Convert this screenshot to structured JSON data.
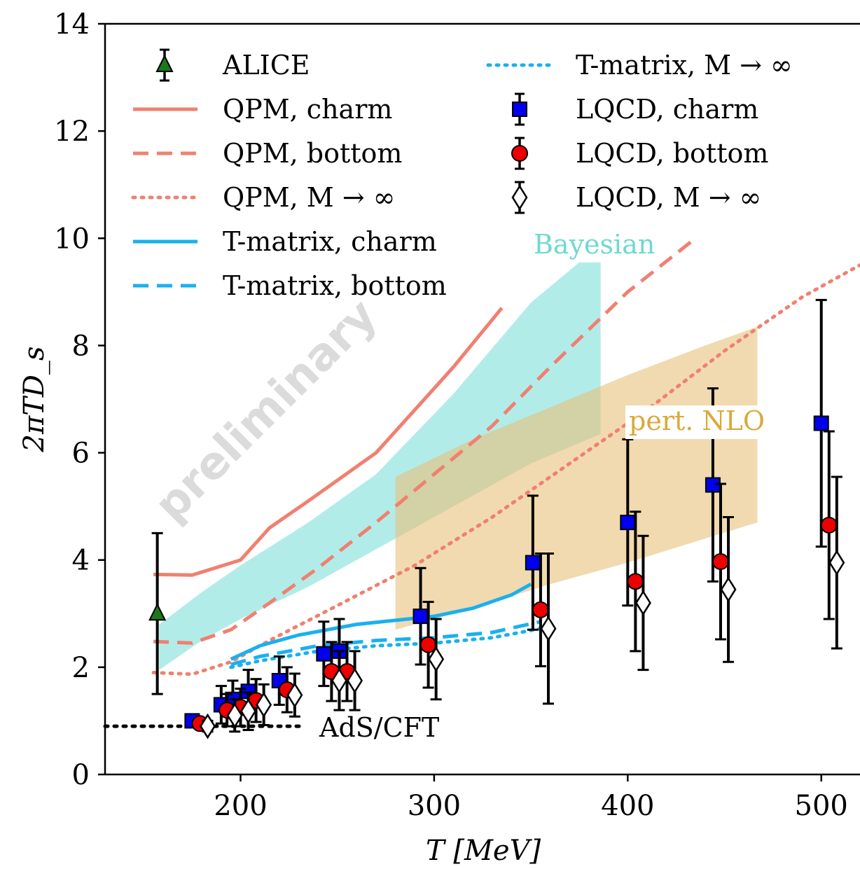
{
  "chart_data": {
    "type": "scatter",
    "xlabel": "T [MeV]",
    "ylabel": "2πTD_s",
    "xlim": [
      130,
      520
    ],
    "ylim": [
      0,
      14
    ],
    "x_ticks": [
      200,
      300,
      400,
      500
    ],
    "y_ticks": [
      0,
      2,
      4,
      6,
      8,
      10,
      12,
      14
    ],
    "legend_position": "top",
    "watermark": "preliminary",
    "annotations": {
      "bayesian": "Bayesian",
      "nlo": "pert. NLO",
      "ads": "AdS/CFT"
    },
    "colors": {
      "qpm": "#f08070",
      "tmatrix": "#1ab0ef",
      "bayesian": "#7fe0d8",
      "nlo": "#e8c27a",
      "alice": "#1a7a1a",
      "lqcd_charm": "#0000ee",
      "lqcd_bottom": "#ee0000"
    },
    "legend": [
      {
        "label": "ALICE",
        "style": "triangle"
      },
      {
        "label": "QPM, charm",
        "style": "qpm-solid"
      },
      {
        "label": "QPM, bottom",
        "style": "qpm-dashed"
      },
      {
        "label": "QPM,  M → ∞",
        "style": "qpm-dotted"
      },
      {
        "label": "T-matrix, charm",
        "style": "tm-solid"
      },
      {
        "label": "T-matrix, bottom",
        "style": "tm-dashed"
      },
      {
        "label": "T-matrix,  M → ∞",
        "style": "tm-dotted"
      },
      {
        "label": "LQCD, charm",
        "style": "square"
      },
      {
        "label": "LQCD, bottom",
        "style": "circle"
      },
      {
        "label": "LQCD,  M → ∞",
        "style": "diamond"
      }
    ],
    "bands": [
      {
        "name": "Bayesian",
        "upper": [
          [
            158,
            2.8
          ],
          [
            180,
            3.4
          ],
          [
            200,
            3.9
          ],
          [
            235,
            4.7
          ],
          [
            270,
            5.6
          ],
          [
            310,
            7.1
          ],
          [
            350,
            8.8
          ],
          [
            375,
            9.55
          ],
          [
            386,
            9.55
          ]
        ],
        "lower": [
          [
            158,
            1.95
          ],
          [
            180,
            2.5
          ],
          [
            200,
            2.9
          ],
          [
            235,
            3.5
          ],
          [
            270,
            4.2
          ],
          [
            310,
            5.0
          ],
          [
            350,
            5.8
          ],
          [
            386,
            6.35
          ]
        ]
      },
      {
        "name": "pert. NLO",
        "upper": [
          [
            280,
            5.55
          ],
          [
            320,
            6.25
          ],
          [
            360,
            6.85
          ],
          [
            400,
            7.45
          ],
          [
            440,
            8.0
          ],
          [
            467,
            8.35
          ]
        ],
        "lower": [
          [
            280,
            2.7
          ],
          [
            320,
            3.1
          ],
          [
            360,
            3.55
          ],
          [
            400,
            3.95
          ],
          [
            440,
            4.4
          ],
          [
            467,
            4.7
          ]
        ]
      }
    ],
    "series": [
      {
        "name": "QPM, charm",
        "x": [
          155,
          175,
          200,
          215,
          235,
          270,
          310,
          335
        ],
        "y": [
          3.73,
          3.72,
          4.0,
          4.6,
          5.1,
          6.0,
          7.6,
          8.7
        ]
      },
      {
        "name": "QPM, bottom",
        "x": [
          155,
          175,
          195,
          215,
          240,
          270,
          300,
          330,
          360,
          400,
          435
        ],
        "y": [
          2.48,
          2.45,
          2.7,
          3.2,
          3.85,
          4.7,
          5.6,
          6.5,
          7.6,
          9.0,
          10.0
        ]
      },
      {
        "name": "QPM, M → ∞",
        "x": [
          155,
          175,
          195,
          215,
          250,
          290,
          330,
          370,
          410,
          450,
          490,
          525
        ],
        "y": [
          1.9,
          1.87,
          2.1,
          2.5,
          3.15,
          3.9,
          4.8,
          5.8,
          6.8,
          7.9,
          8.9,
          9.6
        ]
      },
      {
        "name": "T-matrix, charm",
        "x": [
          195,
          210,
          230,
          260,
          300,
          320,
          340,
          350
        ],
        "y": [
          2.15,
          2.4,
          2.6,
          2.8,
          2.95,
          3.1,
          3.35,
          3.55
        ]
      },
      {
        "name": "T-matrix, bottom",
        "x": [
          195,
          210,
          240,
          270,
          300,
          330,
          355
        ],
        "y": [
          2.05,
          2.2,
          2.4,
          2.5,
          2.55,
          2.65,
          2.85
        ]
      },
      {
        "name": "T-matrix, M → ∞",
        "x": [
          195,
          210,
          240,
          270,
          300,
          330,
          355
        ],
        "y": [
          2.0,
          2.12,
          2.3,
          2.4,
          2.45,
          2.55,
          2.72
        ]
      },
      {
        "name": "AdS/CFT",
        "x": [
          130,
          232
        ],
        "y": [
          0.9,
          0.9
        ]
      }
    ],
    "points": [
      {
        "name": "ALICE",
        "marker": "triangle",
        "data": [
          {
            "x": 157,
            "y": 3.0,
            "err": 1.5
          }
        ]
      },
      {
        "name": "LQCD, charm",
        "marker": "square",
        "data": [
          {
            "x": 175,
            "y": 1.0,
            "err": 0.1
          },
          {
            "x": 190,
            "y": 1.3,
            "err": 0.35
          },
          {
            "x": 196,
            "y": 1.4,
            "err": 0.35
          },
          {
            "x": 204,
            "y": 1.55,
            "err": 0.4
          },
          {
            "x": 220,
            "y": 1.75,
            "err": 0.45
          },
          {
            "x": 243,
            "y": 2.25,
            "err": 0.6
          },
          {
            "x": 251,
            "y": 2.3,
            "err": 0.6
          },
          {
            "x": 293,
            "y": 2.95,
            "err": 0.9
          },
          {
            "x": 351,
            "y": 3.95,
            "err": 1.25
          },
          {
            "x": 400,
            "y": 4.7,
            "err": 1.55
          },
          {
            "x": 444,
            "y": 5.4,
            "err": 1.8
          },
          {
            "x": 500,
            "y": 6.55,
            "err": 2.3
          }
        ]
      },
      {
        "name": "LQCD, bottom",
        "marker": "circle",
        "data": [
          {
            "x": 179,
            "y": 0.95,
            "err": 0.1
          },
          {
            "x": 193,
            "y": 1.2,
            "err": 0.3
          },
          {
            "x": 200,
            "y": 1.25,
            "err": 0.35
          },
          {
            "x": 208,
            "y": 1.38,
            "err": 0.4
          },
          {
            "x": 224,
            "y": 1.58,
            "err": 0.42
          },
          {
            "x": 247,
            "y": 1.92,
            "err": 0.55
          },
          {
            "x": 255,
            "y": 1.92,
            "err": 0.55
          },
          {
            "x": 297,
            "y": 2.42,
            "err": 0.8
          },
          {
            "x": 355,
            "y": 3.07,
            "err": 1.05
          },
          {
            "x": 404,
            "y": 3.6,
            "err": 1.3
          },
          {
            "x": 448,
            "y": 3.97,
            "err": 1.45
          },
          {
            "x": 504,
            "y": 4.65,
            "err": 1.75
          }
        ]
      },
      {
        "name": "LQCD, M → ∞",
        "marker": "diamond",
        "data": [
          {
            "x": 183,
            "y": 0.9,
            "err": 0.1
          },
          {
            "x": 197,
            "y": 1.1,
            "err": 0.3
          },
          {
            "x": 204,
            "y": 1.18,
            "err": 0.35
          },
          {
            "x": 212,
            "y": 1.3,
            "err": 0.38
          },
          {
            "x": 228,
            "y": 1.48,
            "err": 0.4
          },
          {
            "x": 251,
            "y": 1.75,
            "err": 0.55
          },
          {
            "x": 259,
            "y": 1.75,
            "err": 0.55
          },
          {
            "x": 301,
            "y": 2.15,
            "err": 0.75
          },
          {
            "x": 359,
            "y": 2.72,
            "err": 1.4
          },
          {
            "x": 408,
            "y": 3.2,
            "err": 1.25
          },
          {
            "x": 452,
            "y": 3.45,
            "err": 1.35
          },
          {
            "x": 508,
            "y": 3.95,
            "err": 1.6
          }
        ]
      }
    ]
  }
}
